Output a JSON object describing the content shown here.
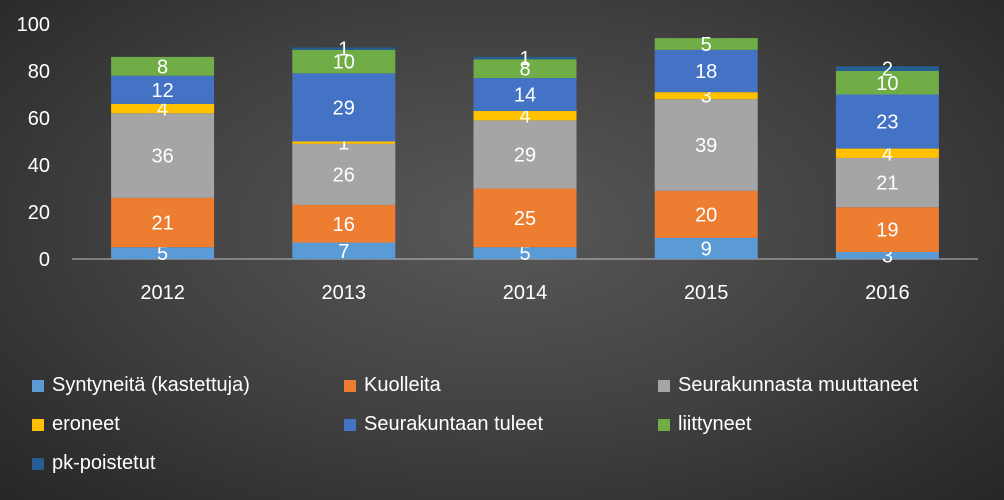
{
  "chart_data": {
    "type": "bar",
    "stacked": true,
    "title": "",
    "xlabel": "",
    "ylabel": "",
    "categories": [
      "2012",
      "2013",
      "2014",
      "2015",
      "2016"
    ],
    "ylim": [
      0,
      100
    ],
    "yticks": [
      0,
      20,
      40,
      60,
      80,
      100
    ],
    "grid": false,
    "legend_position": "bottom",
    "series": [
      {
        "name": "Syntyneitä (kastettuja)",
        "color": "#5b9bd5",
        "values": [
          5,
          7,
          5,
          9,
          3
        ]
      },
      {
        "name": "Kuolleita",
        "color": "#ed7d31",
        "values": [
          21,
          16,
          25,
          20,
          19
        ]
      },
      {
        "name": "Seurakunnasta muuttaneet",
        "color": "#a5a5a5",
        "values": [
          36,
          26,
          29,
          39,
          21
        ]
      },
      {
        "name": "eroneet",
        "color": "#ffc000",
        "values": [
          4,
          1,
          4,
          3,
          4
        ]
      },
      {
        "name": "Seurakuntaan tuleet",
        "color": "#4472c4",
        "values": [
          12,
          29,
          14,
          18,
          23
        ]
      },
      {
        "name": "liittyneet",
        "color": "#70ad47",
        "values": [
          8,
          10,
          8,
          5,
          10
        ]
      },
      {
        "name": "pk-poistetut",
        "color": "#255e91",
        "values": [
          0,
          1,
          1,
          0,
          2
        ]
      }
    ]
  }
}
